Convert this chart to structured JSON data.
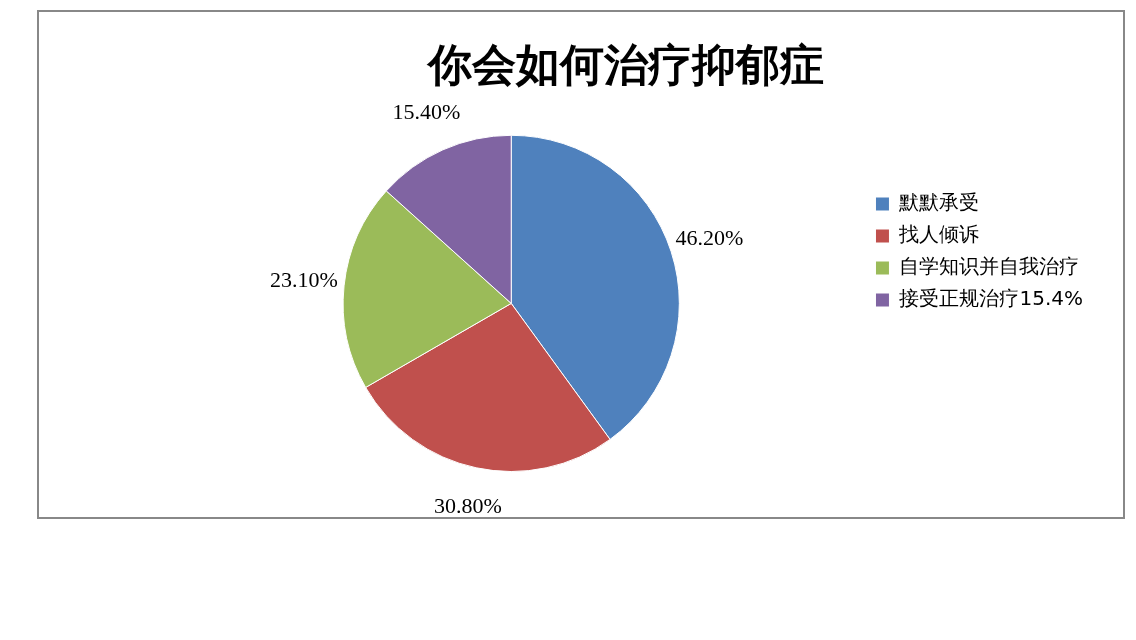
{
  "chart_data": {
    "type": "pie",
    "title": "你会如何治疗抑郁症",
    "categories": [
      "默默承受",
      "找人倾诉",
      "自学知识并自我治疗",
      "接受正规治疗15.4%"
    ],
    "values": [
      46.2,
      30.8,
      23.1,
      15.4
    ],
    "colors": [
      "#4f81bd",
      "#c0504d",
      "#9bbb59",
      "#8064a2"
    ],
    "value_labels": [
      "46.20%",
      "30.80%",
      "23.10%",
      "15.40%"
    ],
    "legend": "right"
  }
}
